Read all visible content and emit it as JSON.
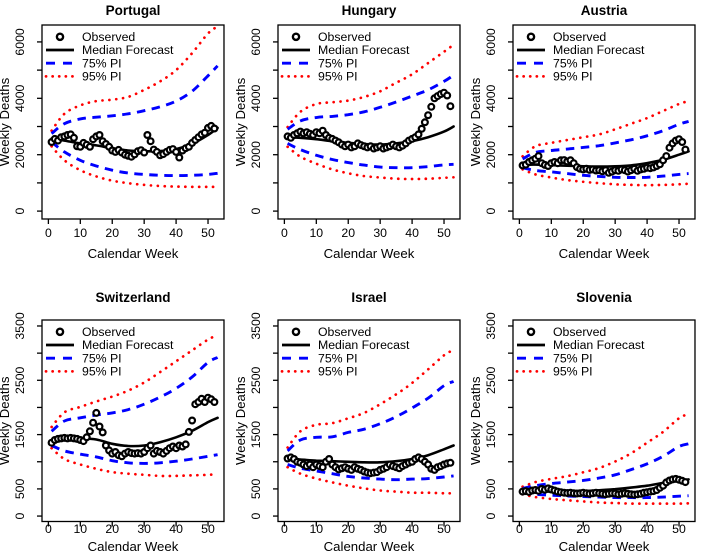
{
  "figure": {
    "background": "#ffffff",
    "xlabel": "Calendar Week",
    "ylabel": "Weekly Deaths",
    "legend": [
      {
        "label": "Observed",
        "marker": "point"
      },
      {
        "label": "Median Forecast",
        "marker": "solid-line"
      },
      {
        "label": "75% PI",
        "marker": "dashed-line"
      },
      {
        "label": "95% PI",
        "marker": "dotted-line"
      }
    ],
    "colors": {
      "observed": "#000000",
      "median": "#000000",
      "pi75": "#0000ff",
      "pi95": "#ff0000",
      "axis": "#000000"
    }
  },
  "chart_data": [
    {
      "type": "line",
      "title": "Portugal",
      "row": 0,
      "xlabel": "Calendar Week",
      "ylabel": "Weekly Deaths",
      "xlim": [
        -2,
        55
      ],
      "ylim": [
        -280,
        6600
      ],
      "xticks": [
        0,
        10,
        20,
        30,
        40,
        50
      ],
      "yticks": [
        0,
        1000,
        2000,
        3000,
        4000,
        5000,
        6000
      ],
      "ytick_labeled": [
        0,
        2000,
        4000,
        6000
      ],
      "forecast_x": [
        1,
        5,
        10,
        15,
        20,
        25,
        30,
        35,
        40,
        45,
        50,
        53
      ],
      "series": [
        {
          "name": "Median Forecast",
          "values": [
            2570,
            2500,
            2400,
            2330,
            2230,
            2150,
            2120,
            2130,
            2200,
            2380,
            2700,
            2950
          ]
        },
        {
          "name": "75% PI upper",
          "values": [
            2750,
            3100,
            3270,
            3330,
            3380,
            3450,
            3560,
            3700,
            3900,
            4250,
            4800,
            5150
          ]
        },
        {
          "name": "75% PI lower",
          "values": [
            2450,
            2100,
            1800,
            1600,
            1450,
            1350,
            1300,
            1270,
            1260,
            1270,
            1300,
            1340
          ]
        },
        {
          "name": "95% PI upper",
          "values": [
            2850,
            3450,
            3750,
            3900,
            3950,
            4050,
            4300,
            4600,
            5000,
            5600,
            6300,
            6550
          ]
        },
        {
          "name": "95% PI lower",
          "values": [
            2300,
            1800,
            1450,
            1230,
            1080,
            990,
            930,
            890,
            870,
            860,
            860,
            860
          ]
        }
      ],
      "observed_weeks_start": 1,
      "observed": [
        2450,
        2560,
        2500,
        2620,
        2650,
        2700,
        2720,
        2600,
        2300,
        2280,
        2420,
        2350,
        2280,
        2550,
        2650,
        2700,
        2480,
        2380,
        2280,
        2150,
        2100,
        2170,
        2080,
        2000,
        1960,
        1930,
        2010,
        2120,
        2160,
        2080,
        2700,
        2480,
        2180,
        2100,
        1980,
        2020,
        2100,
        2170,
        2200,
        2100,
        1900,
        2150,
        2230,
        2280,
        2420,
        2520,
        2620,
        2720,
        2780,
        2950,
        3020,
        2930
      ]
    },
    {
      "type": "line",
      "title": "Hungary",
      "row": 0,
      "xlabel": "Calendar Week",
      "ylabel": "Weekly Deaths",
      "xlim": [
        -2,
        55
      ],
      "ylim": [
        -280,
        6600
      ],
      "xticks": [
        0,
        10,
        20,
        30,
        40,
        50
      ],
      "yticks": [
        0,
        1000,
        2000,
        3000,
        4000,
        5000,
        6000
      ],
      "ytick_labeled": [
        0,
        2000,
        4000,
        6000
      ],
      "forecast_x": [
        1,
        5,
        10,
        15,
        20,
        25,
        30,
        35,
        40,
        45,
        50,
        53
      ],
      "series": [
        {
          "name": "Median Forecast",
          "values": [
            2620,
            2600,
            2550,
            2480,
            2420,
            2380,
            2360,
            2400,
            2480,
            2620,
            2820,
            3000
          ]
        },
        {
          "name": "75% PI upper",
          "values": [
            2900,
            3200,
            3320,
            3360,
            3420,
            3520,
            3680,
            3870,
            4080,
            4300,
            4600,
            4820
          ]
        },
        {
          "name": "75% PI lower",
          "values": [
            2400,
            2180,
            1980,
            1830,
            1720,
            1630,
            1560,
            1540,
            1540,
            1580,
            1640,
            1660
          ]
        },
        {
          "name": "95% PI upper",
          "values": [
            2980,
            3520,
            3800,
            3860,
            3920,
            4050,
            4250,
            4550,
            4850,
            5250,
            5650,
            5900
          ]
        },
        {
          "name": "95% PI lower",
          "values": [
            2280,
            1930,
            1680,
            1480,
            1340,
            1240,
            1190,
            1150,
            1140,
            1150,
            1180,
            1200
          ]
        }
      ],
      "observed_weeks_start": 1,
      "observed": [
        2650,
        2600,
        2700,
        2760,
        2820,
        2760,
        2800,
        2740,
        2700,
        2800,
        2760,
        2850,
        2700,
        2600,
        2560,
        2500,
        2440,
        2360,
        2300,
        2360,
        2260,
        2300,
        2400,
        2340,
        2300,
        2260,
        2300,
        2220,
        2260,
        2300,
        2220,
        2260,
        2300,
        2360,
        2300,
        2260,
        2320,
        2400,
        2500,
        2560,
        2620,
        2720,
        2920,
        3150,
        3400,
        3700,
        4000,
        4080,
        4150,
        4200,
        4100,
        3720
      ]
    },
    {
      "type": "line",
      "title": "Austria",
      "row": 0,
      "xlabel": "Calendar Week",
      "ylabel": "Weekly Deaths",
      "xlim": [
        -2,
        55
      ],
      "ylim": [
        -280,
        6600
      ],
      "xticks": [
        0,
        10,
        20,
        30,
        40,
        50
      ],
      "yticks": [
        0,
        1000,
        2000,
        3000,
        4000,
        5000,
        6000
      ],
      "ytick_labeled": [
        0,
        2000,
        4000,
        6000
      ],
      "forecast_x": [
        1,
        5,
        10,
        15,
        20,
        25,
        30,
        35,
        40,
        45,
        50,
        53
      ],
      "series": [
        {
          "name": "Median Forecast",
          "values": [
            1640,
            1650,
            1630,
            1610,
            1590,
            1580,
            1590,
            1620,
            1700,
            1820,
            2000,
            2120
          ]
        },
        {
          "name": "75% PI upper",
          "values": [
            1850,
            2080,
            2150,
            2200,
            2260,
            2320,
            2420,
            2530,
            2670,
            2850,
            3080,
            3180
          ]
        },
        {
          "name": "75% PI lower",
          "values": [
            1540,
            1440,
            1390,
            1330,
            1270,
            1230,
            1200,
            1190,
            1200,
            1240,
            1300,
            1330
          ]
        },
        {
          "name": "95% PI upper",
          "values": [
            1940,
            2300,
            2420,
            2520,
            2620,
            2720,
            2900,
            3100,
            3300,
            3550,
            3800,
            3900
          ]
        },
        {
          "name": "95% PI lower",
          "values": [
            1480,
            1300,
            1190,
            1100,
            1040,
            990,
            950,
            930,
            920,
            930,
            950,
            970
          ]
        }
      ],
      "observed_weeks_start": 1,
      "observed": [
        1620,
        1650,
        1740,
        1800,
        1860,
        1950,
        1700,
        1640,
        1600,
        1700,
        1740,
        1700,
        1800,
        1810,
        1760,
        1800,
        1700,
        1560,
        1500,
        1480,
        1500,
        1460,
        1480,
        1440,
        1450,
        1410,
        1450,
        1360,
        1400,
        1450,
        1430,
        1480,
        1450,
        1400,
        1450,
        1500,
        1430,
        1480,
        1500,
        1540,
        1520,
        1550,
        1600,
        1660,
        1800,
        1950,
        2250,
        2400,
        2500,
        2550,
        2450,
        2180
      ]
    },
    {
      "type": "line",
      "title": "Switzerland",
      "row": 1,
      "xlabel": "Calendar Week",
      "ylabel": "Weekly Deaths",
      "xlim": [
        -2,
        55
      ],
      "ylim": [
        -100,
        3610
      ],
      "xticks": [
        0,
        10,
        20,
        30,
        40,
        50
      ],
      "yticks": [
        0,
        500,
        1000,
        1500,
        2000,
        2500,
        3000,
        3500
      ],
      "ytick_labeled": [
        0,
        500,
        1500,
        2500,
        3500
      ],
      "forecast_x": [
        1,
        5,
        10,
        15,
        20,
        25,
        30,
        35,
        40,
        45,
        50,
        53
      ],
      "series": [
        {
          "name": "Median Forecast",
          "values": [
            1400,
            1430,
            1430,
            1410,
            1330,
            1290,
            1300,
            1360,
            1450,
            1570,
            1730,
            1810
          ]
        },
        {
          "name": "75% PI upper",
          "values": [
            1560,
            1750,
            1810,
            1860,
            1900,
            1960,
            2060,
            2190,
            2350,
            2560,
            2830,
            2920
          ]
        },
        {
          "name": "75% PI lower",
          "values": [
            1300,
            1200,
            1140,
            1090,
            1020,
            980,
            970,
            980,
            1010,
            1050,
            1100,
            1130
          ]
        },
        {
          "name": "95% PI upper",
          "values": [
            1640,
            1910,
            2010,
            2110,
            2200,
            2310,
            2460,
            2650,
            2850,
            3050,
            3250,
            3330
          ]
        },
        {
          "name": "95% PI lower",
          "values": [
            1250,
            1050,
            950,
            870,
            810,
            780,
            760,
            740,
            740,
            750,
            760,
            770
          ]
        }
      ],
      "observed_weeks_start": 1,
      "observed": [
        1350,
        1400,
        1420,
        1430,
        1440,
        1430,
        1440,
        1430,
        1420,
        1400,
        1380,
        1450,
        1560,
        1720,
        1900,
        1650,
        1540,
        1300,
        1210,
        1150,
        1180,
        1120,
        1100,
        1150,
        1180,
        1160,
        1150,
        1160,
        1150,
        1180,
        1250,
        1300,
        1150,
        1200,
        1180,
        1150,
        1200,
        1250,
        1280,
        1250,
        1300,
        1280,
        1320,
        1550,
        1760,
        2060,
        2100,
        2160,
        2100,
        2180,
        2150,
        2100
      ]
    },
    {
      "type": "line",
      "title": "Israel",
      "row": 1,
      "xlabel": "Calendar Week",
      "ylabel": "Weekly Deaths",
      "xlim": [
        -2,
        55
      ],
      "ylim": [
        -100,
        3610
      ],
      "xticks": [
        0,
        10,
        20,
        30,
        40,
        50
      ],
      "yticks": [
        0,
        500,
        1000,
        1500,
        2000,
        2500,
        3000,
        3500
      ],
      "ytick_labeled": [
        0,
        500,
        1500,
        2500,
        3500
      ],
      "forecast_x": [
        1,
        5,
        10,
        15,
        20,
        25,
        30,
        35,
        40,
        45,
        50,
        53
      ],
      "series": [
        {
          "name": "Median Forecast",
          "values": [
            1050,
            1040,
            1020,
            1010,
            1000,
            990,
            990,
            1010,
            1050,
            1120,
            1230,
            1300
          ]
        },
        {
          "name": "75% PI upper",
          "values": [
            1200,
            1400,
            1450,
            1460,
            1540,
            1600,
            1700,
            1830,
            1990,
            2170,
            2400,
            2480
          ]
        },
        {
          "name": "75% PI lower",
          "values": [
            950,
            880,
            830,
            780,
            730,
            700,
            680,
            670,
            680,
            690,
            720,
            740
          ]
        },
        {
          "name": "95% PI upper",
          "values": [
            1260,
            1560,
            1680,
            1710,
            1800,
            1900,
            2060,
            2240,
            2450,
            2700,
            2960,
            3060
          ]
        },
        {
          "name": "95% PI lower",
          "values": [
            900,
            780,
            690,
            620,
            560,
            510,
            470,
            450,
            430,
            430,
            420,
            420
          ]
        }
      ],
      "observed_weeks_start": 1,
      "observed": [
        1060,
        1080,
        1050,
        1000,
        980,
        950,
        920,
        950,
        900,
        950,
        920,
        900,
        1000,
        1050,
        950,
        900,
        860,
        880,
        900,
        870,
        850,
        900,
        870,
        850,
        820,
        800,
        790,
        800,
        810,
        850,
        870,
        900,
        950,
        920,
        900,
        880,
        920,
        950,
        980,
        1000,
        1050,
        1080,
        1050,
        1000,
        950,
        870,
        850,
        900,
        920,
        950,
        970,
        980
      ]
    },
    {
      "type": "line",
      "title": "Slovenia",
      "row": 1,
      "xlabel": "Calendar Week",
      "ylabel": "Weekly Deaths",
      "xlim": [
        -2,
        55
      ],
      "ylim": [
        -100,
        3610
      ],
      "xticks": [
        0,
        10,
        20,
        30,
        40,
        50
      ],
      "yticks": [
        0,
        500,
        1000,
        1500,
        2000,
        2500,
        3000,
        3500
      ],
      "ytick_labeled": [
        0,
        500,
        1500,
        2500,
        3500
      ],
      "forecast_x": [
        1,
        5,
        10,
        15,
        20,
        25,
        30,
        35,
        40,
        45,
        50,
        53
      ],
      "series": [
        {
          "name": "Median Forecast",
          "values": [
            450,
            450,
            450,
            455,
            460,
            475,
            495,
            525,
            560,
            610,
            655,
            675
          ]
        },
        {
          "name": "75% PI upper",
          "values": [
            510,
            560,
            600,
            625,
            655,
            700,
            760,
            855,
            960,
            1100,
            1280,
            1330
          ]
        },
        {
          "name": "75% PI lower",
          "values": [
            425,
            400,
            385,
            370,
            360,
            350,
            340,
            340,
            340,
            350,
            365,
            375
          ]
        },
        {
          "name": "95% PI upper",
          "values": [
            540,
            625,
            685,
            735,
            805,
            885,
            1005,
            1155,
            1350,
            1550,
            1800,
            1880
          ]
        },
        {
          "name": "95% PI lower",
          "values": [
            400,
            350,
            315,
            290,
            270,
            250,
            240,
            230,
            230,
            230,
            230,
            235
          ]
        }
      ],
      "observed_weeks_start": 1,
      "observed": [
        450,
        460,
        445,
        470,
        480,
        465,
        500,
        485,
        510,
        490,
        470,
        450,
        440,
        430,
        425,
        430,
        420,
        415,
        420,
        430,
        420,
        410,
        420,
        430,
        420,
        410,
        400,
        410,
        420,
        415,
        400,
        410,
        420,
        410,
        400,
        395,
        400,
        410,
        430,
        440,
        450,
        460,
        480,
        520,
        560,
        620,
        655,
        675,
        685,
        670,
        650,
        625
      ]
    }
  ]
}
